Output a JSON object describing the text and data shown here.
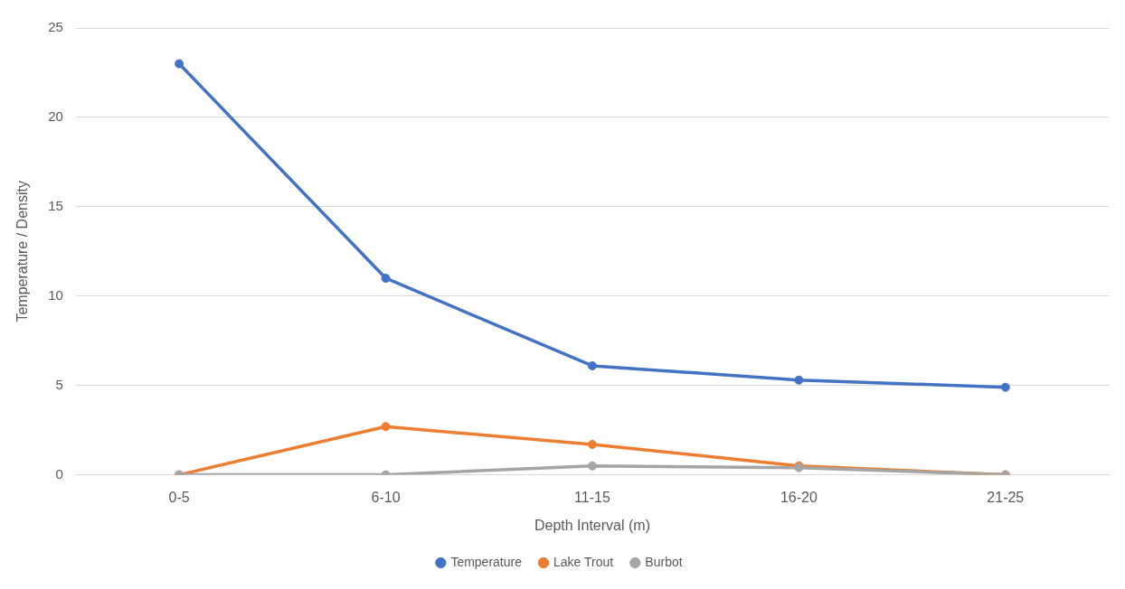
{
  "chart_data": {
    "type": "line",
    "xlabel": "Depth Interval (m)",
    "ylabel": "Temperature / Density",
    "categories": [
      "0-5",
      "6-10",
      "11-15",
      "16-20",
      "21-25"
    ],
    "series": [
      {
        "name": "Temperature",
        "color": "#4472c4",
        "values": [
          23,
          11,
          6.1,
          5.3,
          4.9
        ]
      },
      {
        "name": "Lake Trout",
        "color": "#ed7d31",
        "values": [
          0,
          2.7,
          1.7,
          0.5,
          0
        ]
      },
      {
        "name": "Burbot",
        "color": "#a5a5a5",
        "values": [
          0,
          0,
          0.5,
          0.4,
          0
        ]
      }
    ],
    "ylim": [
      0,
      25
    ],
    "yticks": [
      0,
      5,
      10,
      15,
      20,
      25
    ],
    "grid": "y",
    "legend": "bottom",
    "marker": "circle",
    "line_style": "solid"
  }
}
